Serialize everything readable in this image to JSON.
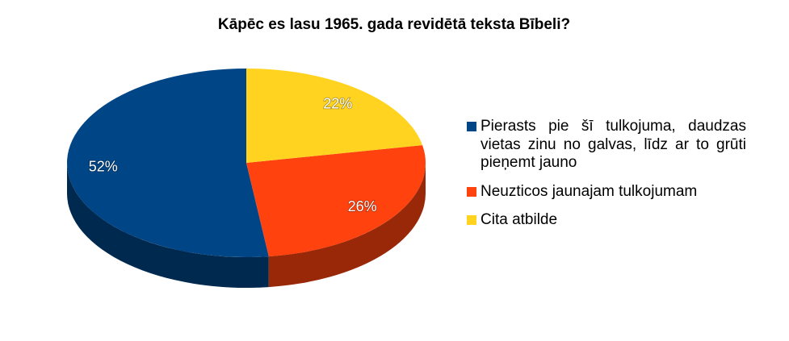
{
  "chart_data": {
    "type": "pie3d",
    "title": "Kāpēc es lasu 1965. gada revidētā teksta Bībeli?",
    "categories": [
      "Pierasts pie šī tulkojuma, daudzas vietas zinu no galvas, līdz ar to grūti pieņemt jauno",
      "Neuzticos jaunajam tulkojumam",
      "Cita atbilde"
    ],
    "values": [
      52,
      26,
      22
    ],
    "value_labels": [
      "52%",
      "26%",
      "22%"
    ],
    "colors": [
      "#004586",
      "#ff420e",
      "#ffd320"
    ],
    "legend": "right"
  }
}
